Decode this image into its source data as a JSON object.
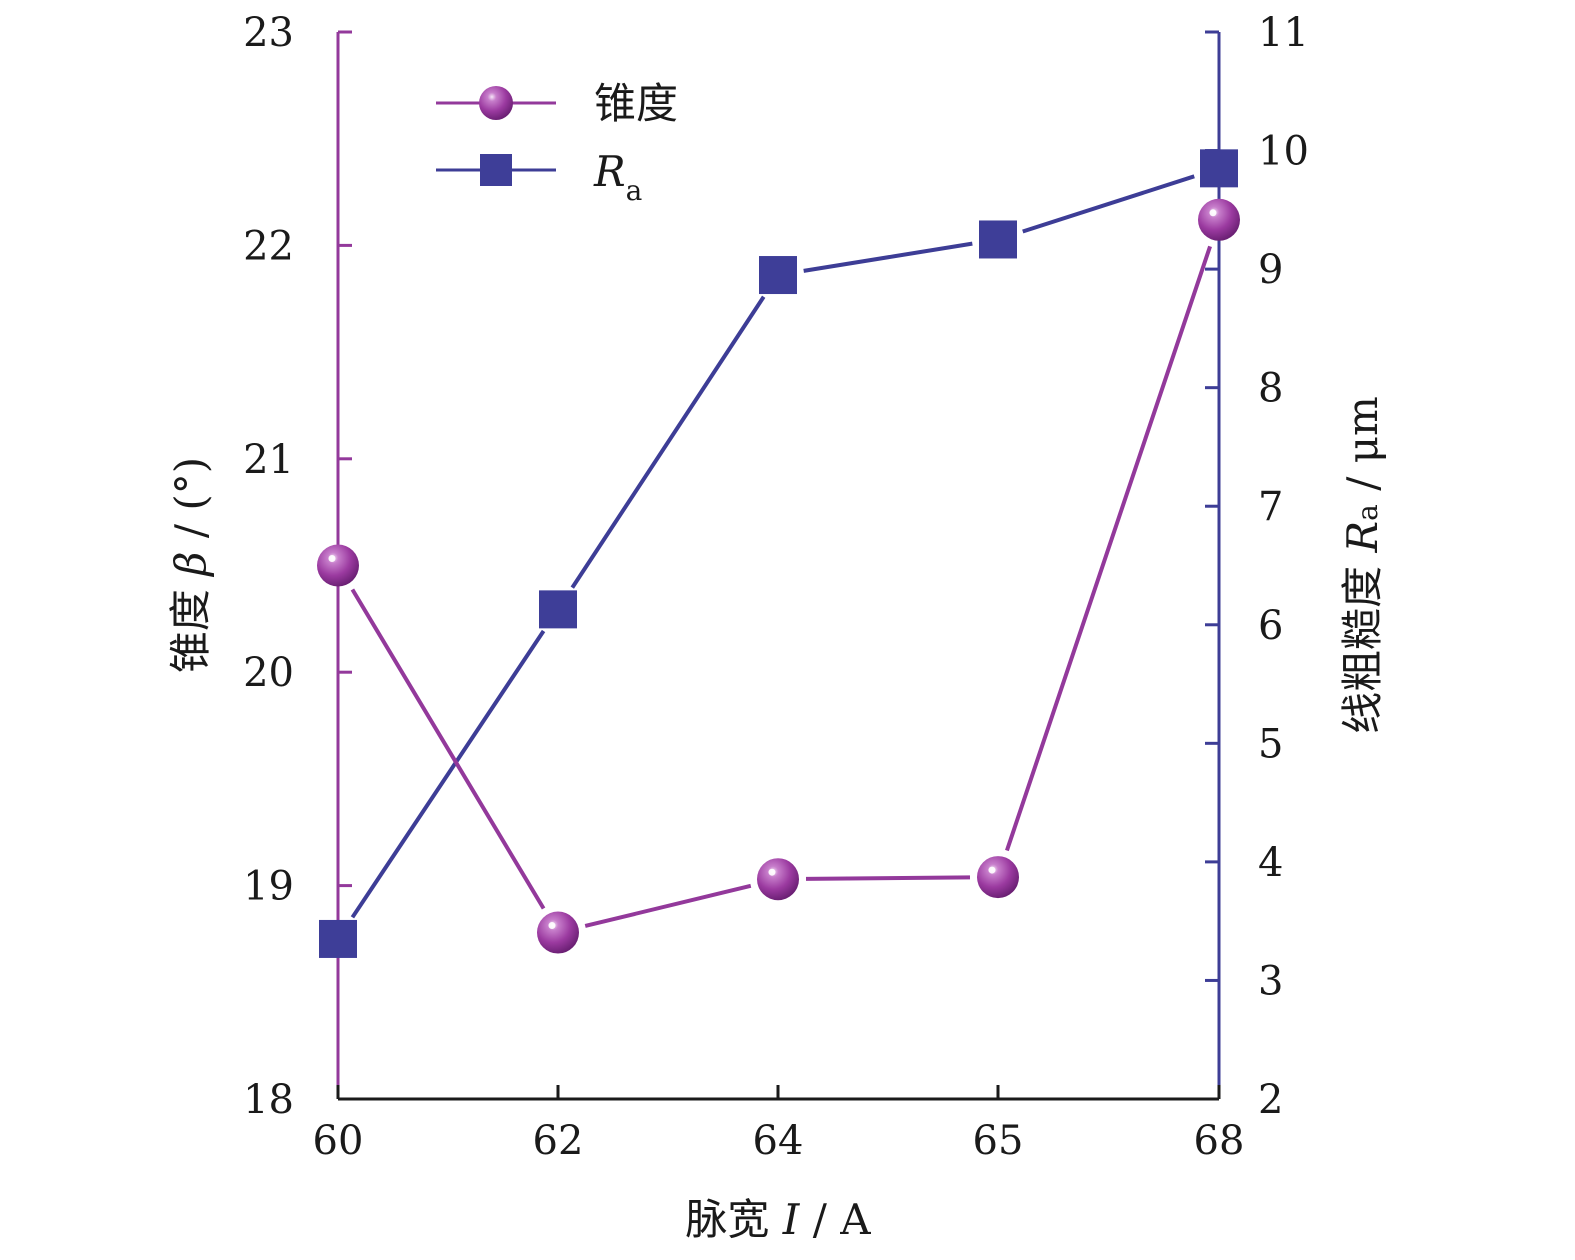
{
  "colors": {
    "taper": "#93399b",
    "taper_marker": "#a0399d",
    "ra": "#3d3d96",
    "ra_marker": "#3e3e98",
    "text": "#1a1a1a",
    "background": "#ffffff"
  },
  "chart_data": {
    "type": "line",
    "x_axis_type": "category",
    "categories": [
      "60",
      "62",
      "64",
      "65",
      "68"
    ],
    "xlabel": {
      "main": "脉宽 ",
      "italic": "I",
      "unit": " / A"
    },
    "ylabel_left": {
      "main": "锥度 ",
      "italic": "β",
      "unit": " / (°)"
    },
    "ylabel_right": {
      "main": "线粗糙度 ",
      "italic": "R",
      "sub": "a",
      "unit": " / μm"
    },
    "ylim_left": [
      18,
      23
    ],
    "ylim_right": [
      2,
      11
    ],
    "yticks_left": [
      "18",
      "19",
      "20",
      "21",
      "22",
      "23"
    ],
    "yticks_right": [
      "2",
      "3",
      "4",
      "5",
      "6",
      "7",
      "8",
      "9",
      "10",
      "11"
    ],
    "grid": false,
    "legend_position": "top-left",
    "series": [
      {
        "name": "锥度",
        "axis": "left",
        "marker": "sphere",
        "values": [
          20.5,
          18.78,
          19.03,
          19.04,
          22.12
        ]
      },
      {
        "name_italic": "R",
        "name_sub": "a",
        "axis": "right",
        "marker": "square",
        "values": [
          3.35,
          6.13,
          8.95,
          9.25,
          9.85
        ]
      }
    ]
  }
}
